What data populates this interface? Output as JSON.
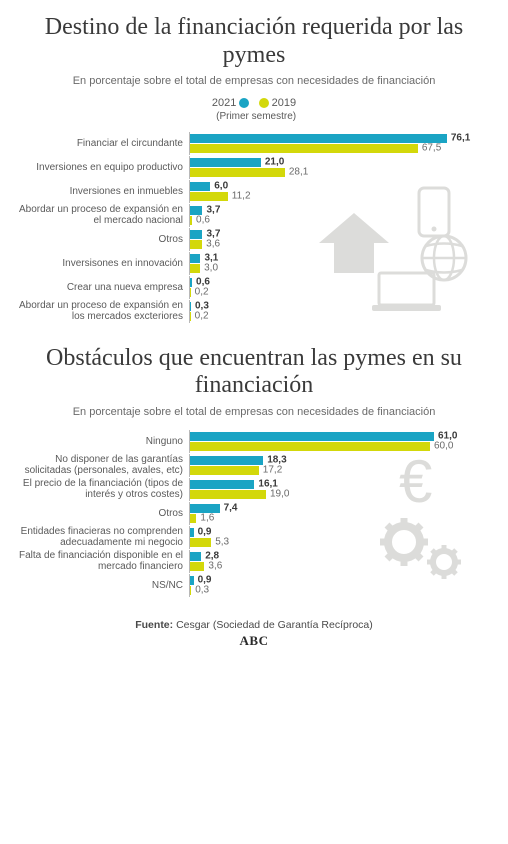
{
  "colors": {
    "series_2021": "#1aa4c4",
    "series_2019": "#d3d80a",
    "text": "#3a3a3a",
    "subtext": "#6a6a6a",
    "axis": "#b8b8b8",
    "icon": "#d9d9d6"
  },
  "legend": {
    "year1": "2021",
    "year1_note": "(Primer\nsemestre)",
    "year2": "2019"
  },
  "chart1": {
    "title": "Destino de la financiación requerida por las pymes",
    "subtitle": "En porcentaje sobre el total de empresas con necesidades de financiación",
    "max": 80,
    "categories": [
      {
        "label": "Financiar el circundante",
        "v2021": 76.1,
        "s2021": "76,1",
        "v2019": 67.5,
        "s2019": "67,5"
      },
      {
        "label": "Inversiones en equipo productivo",
        "v2021": 21.0,
        "s2021": "21,0",
        "v2019": 28.1,
        "s2019": "28,1"
      },
      {
        "label": "Inversiones en inmuebles",
        "v2021": 6.0,
        "s2021": "6,0",
        "v2019": 11.2,
        "s2019": "11,2"
      },
      {
        "label": "Abordar un proceso de expansión en el mercado nacional",
        "v2021": 3.7,
        "s2021": "3,7",
        "v2019": 0.6,
        "s2019": "0,6"
      },
      {
        "label": "Otros",
        "v2021": 3.7,
        "s2021": "3,7",
        "v2019": 3.6,
        "s2019": "3,6"
      },
      {
        "label": "Inversisones en innovación",
        "v2021": 3.1,
        "s2021": "3,1",
        "v2019": 3.0,
        "s2019": "3,0"
      },
      {
        "label": "Crear una nueva empresa",
        "v2021": 0.6,
        "s2021": "0,6",
        "v2019": 0.2,
        "s2019": "0,2"
      },
      {
        "label": "Abordar un proceso de expansión en los mercados excteriores",
        "v2021": 0.3,
        "s2021": "0,3",
        "v2019": 0.2,
        "s2019": "0,2"
      }
    ]
  },
  "chart2": {
    "title": "Obstáculos que encuentran las pymes en su financiación",
    "subtitle": "En porcentaje sobre el total de empresas con necesidades de financiación",
    "max": 65,
    "categories": [
      {
        "label": "Ninguno",
        "v2021": 61.0,
        "s2021": "61,0",
        "v2019": 60.0,
        "s2019": "60,0"
      },
      {
        "label": "No disponer de las garantías solicitadas (personales, avales, etc)",
        "v2021": 18.3,
        "s2021": "18,3",
        "v2019": 17.2,
        "s2019": "17,2"
      },
      {
        "label": "El precio de la financiación (tipos de interés y otros costes)",
        "v2021": 16.1,
        "s2021": "16,1",
        "v2019": 19.0,
        "s2019": "19,0"
      },
      {
        "label": "Otros",
        "v2021": 7.4,
        "s2021": "7,4",
        "v2019": 1.6,
        "s2019": "1,6"
      },
      {
        "label": "Entidades finacieras no comprenden adecuadamente mi negocio",
        "v2021": 0.9,
        "s2021": "0,9",
        "v2019": 5.3,
        "s2019": "5,3"
      },
      {
        "label": "Falta de financiación disponible en el mercado financiero",
        "v2021": 2.8,
        "s2021": "2,8",
        "v2019": 3.6,
        "s2019": "3,6"
      },
      {
        "label": "NS/NC",
        "v2021": 0.9,
        "s2021": "0,9",
        "v2019": 0.3,
        "s2019": "0,3"
      }
    ]
  },
  "footer": {
    "source_label": "Fuente:",
    "source_text": "Cesgar (Sociedad de Garantía Recíproca)",
    "brand": "ABC"
  }
}
